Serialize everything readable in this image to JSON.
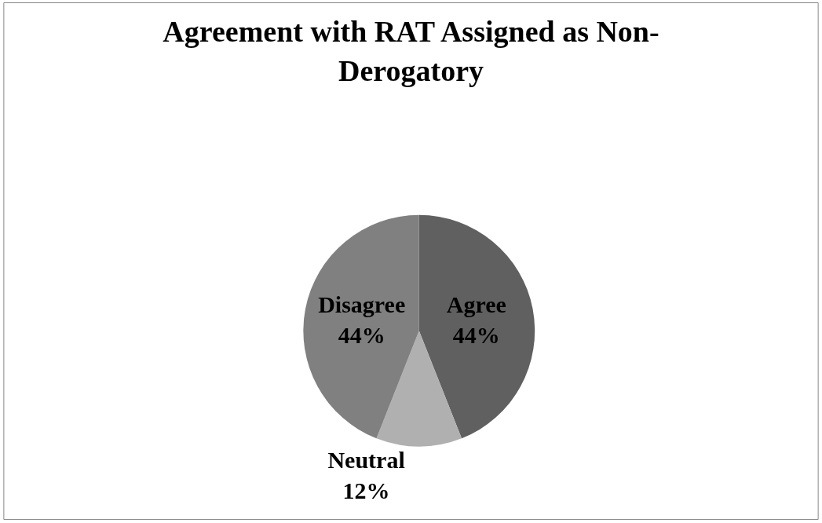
{
  "chart_data": {
    "type": "pie",
    "title": "Agreement with RAT Assigned as Non-Derogatory",
    "categories": [
      "Agree",
      "Neutral",
      "Disagree"
    ],
    "values": [
      44,
      12,
      44
    ],
    "value_labels": [
      "44%",
      "12%",
      "44%"
    ],
    "colors": [
      "#606060",
      "#b0b0b0",
      "#808080"
    ],
    "legend": false
  }
}
